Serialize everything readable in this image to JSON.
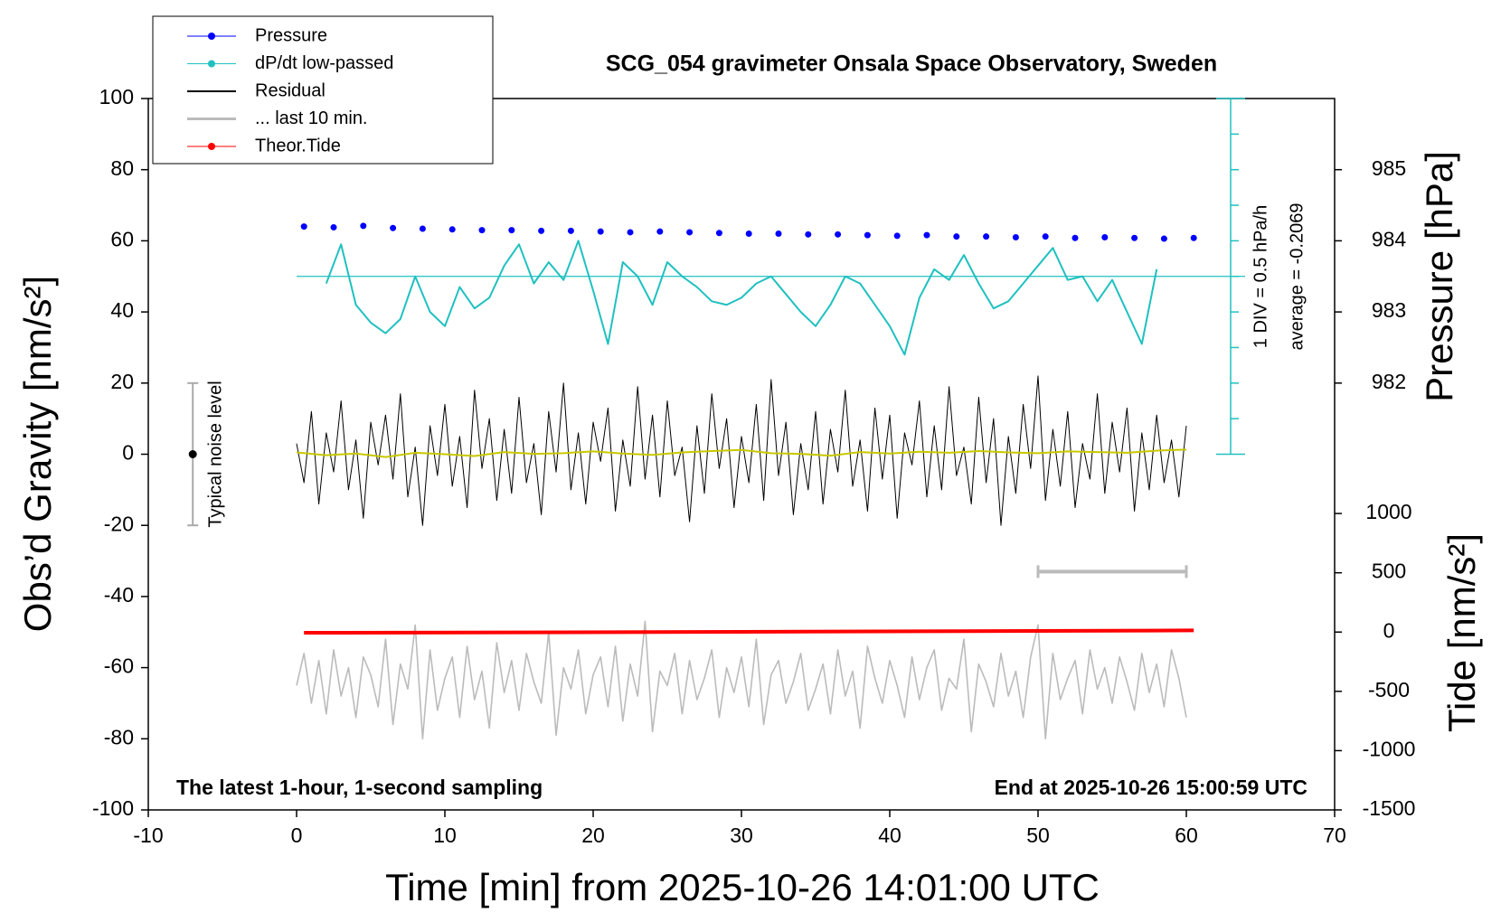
{
  "chart_data": {
    "type": "line",
    "title": "SCG_054 gravimeter Onsala Space Observatory, Sweden",
    "x_label": "Time [min] from 2025-10-26 14:01:00 UTC",
    "y_label": "Obs’d Gravity [nm/s²]",
    "y2_label": "Pressure [hPa]",
    "y3_label": "Tide [nm/s²]",
    "annotations": [
      "The latest 1-hour, 1-second sampling",
      "End at 2025-10-26 15:00:59 UTC",
      "1 DIV = 0.5 hPa/h",
      "average = -0.2069"
    ],
    "legend": "upper left",
    "xlim": [
      -10,
      70
    ],
    "xticks": [
      -10,
      0,
      10,
      20,
      30,
      40,
      50,
      60,
      70
    ],
    "ylim": [
      -100,
      100
    ],
    "yticks": [
      -100,
      -80,
      -60,
      -40,
      -20,
      0,
      20,
      40,
      60,
      80,
      100
    ],
    "y2lim": [
      976,
      986
    ],
    "y2ticks": [
      982,
      983,
      984,
      985
    ],
    "y3lim": [
      -1500,
      4500
    ],
    "y3ticks": [
      -1500,
      -1000,
      -500,
      0,
      500,
      1000
    ],
    "y4lim": [
      -7.7069,
      2.2931
    ],
    "y4ticks": [
      -2.7069,
      -2.2069,
      -1.7069,
      -1.2069,
      -0.7069,
      -0.2069,
      0.2931,
      0.7931,
      1.2931,
      1.7931,
      2.2931
    ],
    "dpdt_average": -0.2069,
    "noise": {
      "x": -7,
      "value": 0,
      "error": 20,
      "label": "Typical noise level"
    },
    "last10_bar": {
      "x": [
        50,
        60
      ],
      "y": -33
    },
    "x": [
      0,
      0.5,
      1,
      1.5,
      2,
      2.5,
      3,
      3.5,
      4,
      4.5,
      5,
      5.5,
      6,
      6.5,
      7,
      7.5,
      8,
      8.5,
      9,
      9.5,
      10,
      10.5,
      11,
      11.5,
      12,
      12.5,
      13,
      13.5,
      14,
      14.5,
      15,
      15.5,
      16,
      16.5,
      17,
      17.5,
      18,
      18.5,
      19,
      19.5,
      20,
      20.5,
      21,
      21.5,
      22,
      22.5,
      23,
      23.5,
      24,
      24.5,
      25,
      25.5,
      26,
      26.5,
      27,
      27.5,
      28,
      28.5,
      29,
      29.5,
      30,
      30.5,
      31,
      31.5,
      32,
      32.5,
      33,
      33.5,
      34,
      34.5,
      35,
      35.5,
      36,
      36.5,
      37,
      37.5,
      38,
      38.5,
      39,
      39.5,
      40,
      40.5,
      41,
      41.5,
      42,
      42.5,
      43,
      43.5,
      44,
      44.5,
      45,
      45.5,
      46,
      46.5,
      47,
      47.5,
      48,
      48.5,
      49,
      49.5,
      50,
      50.5,
      51,
      51.5,
      52,
      52.5,
      53,
      53.5,
      54,
      54.5,
      55,
      55.5,
      56,
      56.5,
      57,
      57.5,
      58,
      58.5,
      59,
      59.5,
      60
    ],
    "series": [
      {
        "name": "Pressure",
        "color": "#0000ff",
        "axis": "y2",
        "style": "dots",
        "legend_marker": true,
        "x": [
          0.5,
          2.5,
          4.5,
          6.5,
          8.5,
          10.5,
          12.5,
          14.5,
          16.5,
          18.5,
          20.5,
          22.5,
          24.5,
          26.5,
          28.5,
          30.5,
          32.5,
          34.5,
          36.5,
          38.5,
          40.5,
          42.5,
          44.5,
          46.5,
          48.5,
          50.5,
          52.5,
          54.5,
          56.5,
          58.5,
          60.5
        ],
        "values": [
          984.2,
          984.19,
          984.21,
          984.18,
          984.17,
          984.16,
          984.15,
          984.15,
          984.14,
          984.14,
          984.13,
          984.12,
          984.13,
          984.12,
          984.11,
          984.1,
          984.1,
          984.09,
          984.09,
          984.08,
          984.07,
          984.08,
          984.06,
          984.06,
          984.05,
          984.06,
          984.04,
          984.05,
          984.04,
          984.03,
          984.04
        ]
      },
      {
        "name": "dP/dt low-passed",
        "color": "#20c0c0",
        "axis": "y4",
        "style": "line",
        "legend_marker": true,
        "x": [
          2,
          3,
          4,
          5,
          6,
          7,
          8,
          9,
          10,
          11,
          12,
          13,
          14,
          15,
          16,
          17,
          18,
          19,
          20,
          21,
          22,
          23,
          24,
          25,
          26,
          27,
          28,
          29,
          30,
          31,
          32,
          33,
          34,
          35,
          36,
          37,
          38,
          39,
          40,
          41,
          42,
          43,
          44,
          45,
          46,
          47,
          48,
          49,
          50,
          51,
          52,
          53,
          54,
          55,
          56,
          57,
          58
        ],
        "values": [
          -0.3069,
          0.2431,
          -0.6069,
          -0.8569,
          -1.0069,
          -0.8069,
          -0.2069,
          -0.7069,
          -0.9069,
          -0.3569,
          -0.6569,
          -0.5069,
          -0.0569,
          0.2431,
          -0.3069,
          -0.0069,
          -0.2569,
          0.2931,
          -0.4069,
          -1.1569,
          -0.0069,
          -0.2069,
          -0.6069,
          -0.0069,
          -0.2069,
          -0.3569,
          -0.5569,
          -0.6069,
          -0.5069,
          -0.3069,
          -0.2069,
          -0.4569,
          -0.7069,
          -0.9069,
          -0.6069,
          -0.2069,
          -0.3069,
          -0.6069,
          -0.9069,
          -1.3069,
          -0.5069,
          -0.1069,
          -0.2569,
          0.0931,
          -0.3069,
          -0.6569,
          -0.5569,
          -0.3069,
          -0.0569,
          0.1931,
          -0.2569,
          -0.2069,
          -0.5569,
          -0.2569,
          -0.7069,
          -1.1569,
          -0.1069
        ]
      },
      {
        "name": "Residual",
        "color": "#000000",
        "axis": "y",
        "style": "line",
        "legend_marker": false,
        "values": [
          3,
          -8,
          12,
          -14,
          6,
          -5,
          15,
          -10,
          4,
          -18,
          9,
          -3,
          11,
          -7,
          17,
          -12,
          2,
          -20,
          8,
          -6,
          14,
          -9,
          5,
          -15,
          18,
          -4,
          10,
          -13,
          7,
          -11,
          16,
          -8,
          3,
          -17,
          12,
          -5,
          20,
          -10,
          6,
          -14,
          9,
          -2,
          13,
          -16,
          4,
          -9,
          19,
          -7,
          11,
          -12,
          15,
          -6,
          2,
          -19,
          8,
          -11,
          17,
          -4,
          10,
          -15,
          5,
          -8,
          14,
          -13,
          21,
          -6,
          9,
          -17,
          3,
          -10,
          12,
          -14,
          7,
          -5,
          18,
          -9,
          4,
          -16,
          13,
          -7,
          11,
          -18,
          6,
          -3,
          15,
          -12,
          8,
          -10,
          19,
          -6,
          2,
          -14,
          16,
          -8,
          10,
          -20,
          5,
          -11,
          14,
          -4,
          22,
          -13,
          7,
          -9,
          12,
          -15,
          3,
          -7,
          17,
          -11,
          9,
          -5,
          13,
          -16,
          6,
          -10,
          11,
          -8,
          4,
          -12,
          8
        ]
      },
      {
        "name": "... last 10 min.",
        "color": "#bbbbbb",
        "axis": "y",
        "style": "line",
        "legend_marker": false,
        "values": [
          -65,
          -56,
          -70,
          -58,
          -73,
          -55,
          -68,
          -60,
          -74,
          -57,
          -62,
          -71,
          -52,
          -76,
          -59,
          -66,
          -48,
          -80,
          -55,
          -72,
          -63,
          -57,
          -74,
          -54,
          -69,
          -61,
          -77,
          -53,
          -67,
          -58,
          -72,
          -56,
          -64,
          -70,
          -50,
          -79,
          -60,
          -66,
          -55,
          -73,
          -62,
          -57,
          -71,
          -54,
          -75,
          -59,
          -68,
          -47,
          -78,
          -61,
          -65,
          -56,
          -73,
          -58,
          -69,
          -63,
          -55,
          -74,
          -60,
          -67,
          -57,
          -71,
          -52,
          -76,
          -62,
          -58,
          -70,
          -64,
          -56,
          -72,
          -66,
          -59,
          -73,
          -55,
          -68,
          -61,
          -77,
          -54,
          -63,
          -70,
          -58,
          -65,
          -74,
          -57,
          -69,
          -60,
          -55,
          -72,
          -63,
          -66,
          -52,
          -78,
          -59,
          -64,
          -71,
          -56,
          -68,
          -61,
          -74,
          -57,
          -48,
          -80,
          -56,
          -69,
          -63,
          -58,
          -73,
          -55,
          -66,
          -60,
          -70,
          -57,
          -64,
          -72,
          -56,
          -67,
          -59,
          -71,
          -55,
          -63,
          -74
        ]
      },
      {
        "name": "Theor.Tide",
        "color": "#ff0000",
        "axis": "y3",
        "style": "line",
        "legend_marker": true,
        "x": [
          0.5,
          15,
          30,
          45,
          60.5
        ],
        "values": [
          -6,
          -3,
          2,
          8,
          14
        ]
      },
      {
        "color": "#c8c800",
        "axis": "y",
        "style": "line",
        "legend_marker": false,
        "x": [
          0,
          2,
          4,
          6,
          8,
          10,
          12,
          14,
          16,
          18,
          20,
          22,
          24,
          26,
          28,
          30,
          32,
          34,
          36,
          38,
          40,
          42,
          44,
          46,
          48,
          50,
          52,
          54,
          56,
          58,
          60
        ],
        "values": [
          0.5,
          -0.3,
          0.2,
          -0.8,
          0.4,
          0,
          -0.5,
          0.6,
          0.1,
          0.3,
          0.8,
          0.2,
          -0.2,
          0.5,
          0.9,
          1.2,
          0.3,
          0.1,
          -0.4,
          0.6,
          0.2,
          0.7,
          0.4,
          0.9,
          0.5,
          0.3,
          0.8,
          0.6,
          0.4,
          1.0,
          1.3
        ]
      }
    ]
  }
}
